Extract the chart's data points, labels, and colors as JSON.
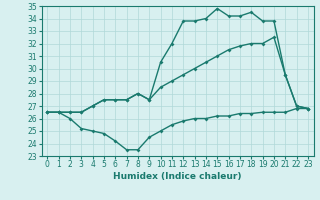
{
  "line1_x": [
    0,
    1,
    2,
    3,
    4,
    5,
    6,
    7,
    8,
    9,
    10,
    11,
    12,
    13,
    14,
    15,
    16,
    17,
    18,
    19,
    20,
    21,
    22,
    23
  ],
  "line1_y": [
    26.5,
    26.5,
    26.5,
    26.5,
    27.0,
    27.5,
    27.5,
    27.5,
    28.0,
    27.5,
    30.5,
    32.0,
    33.8,
    33.8,
    34.0,
    34.8,
    34.2,
    34.2,
    34.5,
    33.8,
    33.8,
    29.5,
    27.0,
    26.8
  ],
  "line2_x": [
    0,
    1,
    2,
    3,
    4,
    5,
    6,
    7,
    8,
    9,
    10,
    11,
    12,
    13,
    14,
    15,
    16,
    17,
    18,
    19,
    20,
    21,
    22,
    23
  ],
  "line2_y": [
    26.5,
    26.5,
    26.5,
    26.5,
    27.0,
    27.5,
    27.5,
    27.5,
    28.0,
    27.5,
    28.5,
    29.0,
    29.5,
    30.0,
    30.5,
    31.0,
    31.5,
    31.8,
    32.0,
    32.0,
    32.5,
    29.5,
    27.0,
    26.8
  ],
  "line3_x": [
    0,
    1,
    2,
    3,
    4,
    5,
    6,
    7,
    8,
    9,
    10,
    11,
    12,
    13,
    14,
    15,
    16,
    17,
    18,
    19,
    20,
    21,
    22,
    23
  ],
  "line3_y": [
    26.5,
    26.5,
    26.0,
    25.2,
    25.0,
    24.8,
    24.2,
    23.5,
    23.5,
    24.5,
    25.0,
    25.5,
    25.8,
    26.0,
    26.0,
    26.2,
    26.2,
    26.4,
    26.4,
    26.5,
    26.5,
    26.5,
    26.8,
    26.8
  ],
  "line_color": "#1a7a6e",
  "bg_color": "#d8f0f0",
  "grid_color": "#b0d8d8",
  "xlabel": "Humidex (Indice chaleur)",
  "xlim": [
    -0.5,
    23.5
  ],
  "ylim": [
    23,
    35
  ],
  "yticks": [
    23,
    24,
    25,
    26,
    27,
    28,
    29,
    30,
    31,
    32,
    33,
    34,
    35
  ],
  "xticks": [
    0,
    1,
    2,
    3,
    4,
    5,
    6,
    7,
    8,
    9,
    10,
    11,
    12,
    13,
    14,
    15,
    16,
    17,
    18,
    19,
    20,
    21,
    22,
    23
  ],
  "marker": "D",
  "markersize": 2,
  "linewidth": 1.0,
  "tick_fontsize": 5.5,
  "xlabel_fontsize": 6.5
}
